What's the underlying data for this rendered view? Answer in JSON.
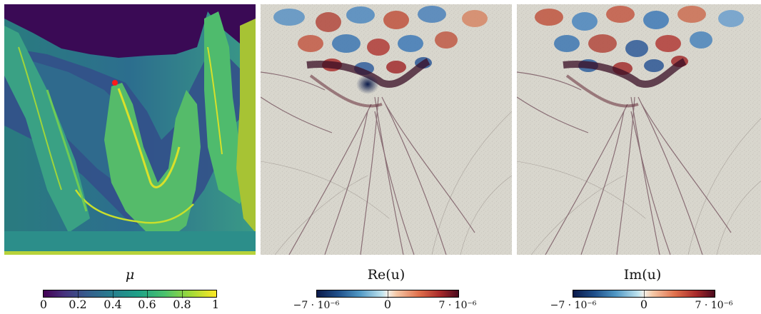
{
  "panels": [
    {
      "id": "mu",
      "caption": "μ",
      "colormap": "viridis",
      "colorbar_ticks": [
        "0",
        "0.2",
        "0.4",
        "0.6",
        "0.8",
        "1"
      ],
      "colorbar_range": [
        0,
        1
      ],
      "source_marker_color": "#ff1a1a"
    },
    {
      "id": "re",
      "caption": "Re(u)",
      "colormap": "diverging blue-white-red",
      "colorbar_ticks": [
        "−7 · 10⁻⁶",
        "0",
        "7 · 10⁻⁶"
      ],
      "colorbar_range": [
        -7e-06,
        7e-06
      ]
    },
    {
      "id": "im",
      "caption": "Im(u)",
      "colormap": "diverging blue-white-red",
      "colorbar_ticks": [
        "−7 · 10⁻⁶",
        "0",
        "7 · 10⁻⁶"
      ],
      "colorbar_range": [
        -7e-06,
        7e-06
      ]
    }
  ],
  "colors": {
    "viridis_dark": "#440154",
    "viridis_teal": "#277f8e",
    "viridis_green": "#4ac16d",
    "viridis_yellow": "#fde725",
    "field_background": "#d8d6cd",
    "diverging_blue": "#1f4f8a",
    "diverging_red": "#a82a2a"
  }
}
